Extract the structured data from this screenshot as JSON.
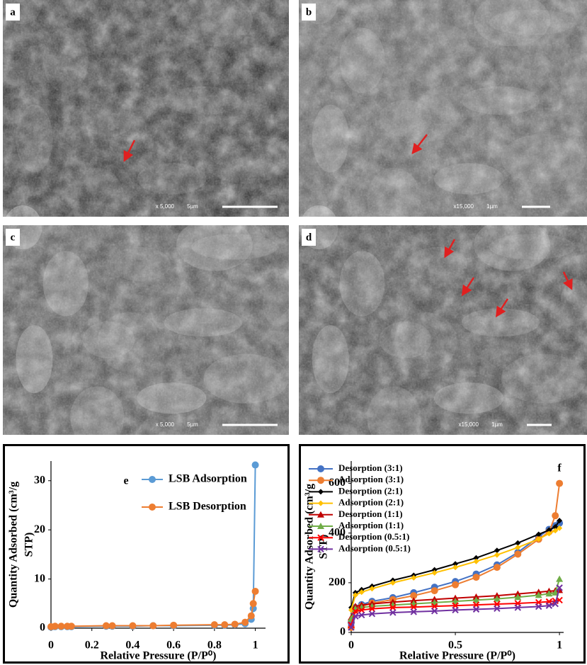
{
  "panels": [
    {
      "label": "a",
      "magnification": "x 5,000",
      "scale": "5µm"
    },
    {
      "label": "b",
      "magnification": "x15,000",
      "scale": "1µm"
    },
    {
      "label": "c",
      "magnification": "x 5,000",
      "scale": "5µm"
    },
    {
      "label": "d",
      "magnification": "x15,000",
      "scale": "1µm"
    }
  ],
  "chart_data": [
    {
      "type": "line",
      "label": "e",
      "ylabel": [
        "Quantity Adsorbed (cm³/g",
        "STP)"
      ],
      "xlabel": "Relative Pressure (P/P⁰)",
      "x": [
        0,
        0.02,
        0.05,
        0.08,
        0.1,
        0.27,
        0.3,
        0.4,
        0.5,
        0.6,
        0.8,
        0.85,
        0.9,
        0.95,
        0.98,
        0.99,
        1
      ],
      "xlim": [
        0,
        1.05
      ],
      "xticks": [
        0,
        0.2,
        0.4,
        0.6,
        0.8,
        1
      ],
      "ylim": [
        0,
        34
      ],
      "yticks": [
        0,
        10,
        20,
        30
      ],
      "series": [
        {
          "name": "LSB Adsorption",
          "color": "#5b9bd5",
          "marker": "circle",
          "values": [
            0.2,
            0.3,
            0.3,
            0.3,
            0.3,
            0.4,
            0.4,
            0.4,
            0.5,
            0.5,
            0.6,
            0.6,
            0.7,
            0.9,
            1.8,
            4,
            33.2
          ]
        },
        {
          "name": "LSB Desorption",
          "color": "#ed7d31",
          "marker": "circle",
          "values": [
            0.3,
            0.4,
            0.4,
            0.4,
            0.4,
            0.5,
            0.5,
            0.5,
            0.5,
            0.6,
            0.7,
            0.7,
            0.8,
            1.2,
            2.5,
            5,
            7.5
          ]
        }
      ]
    },
    {
      "type": "line",
      "label": "f",
      "ylabel": [
        "Quantity Adsorbed (cm³/g",
        "STP)"
      ],
      "xlabel": "Relative Pressure (P/P⁰)",
      "x": [
        0,
        0.02,
        0.05,
        0.1,
        0.2,
        0.3,
        0.4,
        0.5,
        0.6,
        0.7,
        0.8,
        0.9,
        0.95,
        0.98,
        1
      ],
      "xlim": [
        0,
        1.02
      ],
      "xticks": [
        0,
        0.5,
        1
      ],
      "ylim": [
        0,
        690
      ],
      "yticks": [
        0,
        200,
        400,
        600
      ],
      "series": [
        {
          "name": "Desorption (3:1)",
          "color": "#4472c4",
          "marker": "circle",
          "values": [
            40,
            100,
            112,
            125,
            140,
            160,
            182,
            205,
            235,
            272,
            322,
            385,
            415,
            430,
            440
          ]
        },
        {
          "name": "Adsorption (3:1)",
          "color": "#ed7d31",
          "marker": "circle",
          "values": [
            20,
            90,
            105,
            118,
            132,
            148,
            168,
            192,
            222,
            262,
            315,
            375,
            405,
            470,
            600
          ]
        },
        {
          "name": "Desorption (2:1)",
          "color": "#000000",
          "marker": "diamond",
          "values": [
            100,
            160,
            172,
            186,
            210,
            230,
            252,
            276,
            300,
            330,
            360,
            395,
            412,
            425,
            450
          ]
        },
        {
          "name": "Adsorption (2:1)",
          "color": "#ffc000",
          "marker": "diamond",
          "values": [
            90,
            150,
            162,
            176,
            200,
            220,
            240,
            262,
            286,
            312,
            342,
            376,
            398,
            410,
            420
          ]
        },
        {
          "name": "Desorption (1:1)",
          "color": "#c00000",
          "marker": "triangle",
          "values": [
            60,
            105,
            110,
            115,
            122,
            128,
            133,
            138,
            143,
            148,
            155,
            162,
            166,
            168,
            170
          ]
        },
        {
          "name": "Adsorption (1:1)",
          "color": "#70ad47",
          "marker": "triangle",
          "values": [
            55,
            95,
            100,
            105,
            110,
            115,
            120,
            125,
            130,
            135,
            142,
            150,
            156,
            160,
            215
          ]
        },
        {
          "name": "Desorption (0.5:1)",
          "color": "#ff0000",
          "marker": "cross",
          "values": [
            30,
            85,
            90,
            95,
            100,
            102,
            105,
            108,
            111,
            114,
            117,
            121,
            124,
            127,
            130
          ]
        },
        {
          "name": "Adsorption (0.5:1)",
          "color": "#7030a0",
          "marker": "cross",
          "values": [
            20,
            65,
            70,
            75,
            80,
            83,
            86,
            90,
            93,
            96,
            100,
            104,
            108,
            115,
            180
          ]
        }
      ]
    }
  ]
}
